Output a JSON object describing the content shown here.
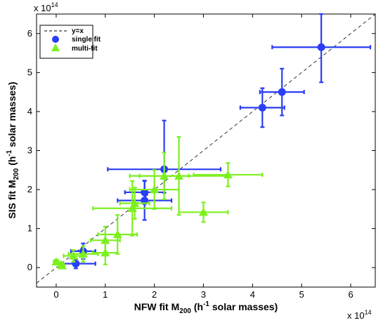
{
  "chart_data": {
    "type": "scatter",
    "xlabel": "NFW fit M",
    "xlabel_sub": "200",
    "xlabel_tail": " (h",
    "xlabel_sup": "-1",
    "xlabel_end": " solar masses)",
    "ylabel": "SIS fit M",
    "ylabel_sub": "200",
    "ylabel_tail": " (h",
    "ylabel_sup": "-1",
    "ylabel_end": " solar masses)",
    "x_multiplier_base": "x 10",
    "x_multiplier_exp": "14",
    "y_multiplier_base": "x 10",
    "y_multiplier_exp": "14",
    "xlim": [
      -0.4,
      6.5
    ],
    "ylim": [
      -0.5,
      6.5
    ],
    "x_ticks": [
      0,
      1,
      2,
      3,
      4,
      5,
      6
    ],
    "y_ticks": [
      0,
      1,
      2,
      3,
      4,
      5,
      6
    ],
    "x_tick_labels": [
      "0",
      "1",
      "2",
      "3",
      "4",
      "5",
      "6"
    ],
    "y_tick_labels": [
      "0",
      "1",
      "2",
      "3",
      "4",
      "5",
      "6"
    ],
    "grid": false,
    "legend_position": "top-left",
    "legend": [
      {
        "label": "y=x",
        "marker": "dashed-line",
        "color": "#000000"
      },
      {
        "label": "single fit",
        "marker": "circle",
        "color": "#2a3ef5"
      },
      {
        "label": "multi-fit",
        "marker": "triangle",
        "color": "#7cf01e"
      }
    ],
    "reference_line": {
      "name": "y=x",
      "x": [
        -0.4,
        6.5
      ],
      "y": [
        -0.4,
        6.5
      ]
    },
    "series": [
      {
        "name": "single fit",
        "marker": "circle",
        "color": "#2a3ef5",
        "points": [
          {
            "x": 5.4,
            "y": 5.65,
            "xerr": [
              1.0,
              1.0
            ],
            "yerr": [
              0.9,
              0.85
            ]
          },
          {
            "x": 4.6,
            "y": 4.5,
            "xerr": [
              0.45,
              0.45
            ],
            "yerr": [
              0.6,
              0.6
            ]
          },
          {
            "x": 4.2,
            "y": 4.1,
            "xerr": [
              0.45,
              0.45
            ],
            "yerr": [
              0.5,
              0.5
            ]
          },
          {
            "x": 2.2,
            "y": 2.52,
            "xerr": [
              1.15,
              1.15
            ],
            "yerr": [
              0.6,
              1.25
            ]
          },
          {
            "x": 1.8,
            "y": 1.93,
            "xerr": [
              0.4,
              0.4
            ],
            "yerr": [
              0.3,
              0.3
            ]
          },
          {
            "x": 1.8,
            "y": 1.72,
            "xerr": [
              0.55,
              0.55
            ],
            "yerr": [
              0.5,
              0.5
            ]
          },
          {
            "x": 0.55,
            "y": 0.42,
            "xerr": [
              0.25,
              0.25
            ],
            "yerr": [
              0.2,
              0.2
            ]
          },
          {
            "x": 0.4,
            "y": 0.1,
            "xerr": [
              0.3,
              0.4
            ],
            "yerr": [
              0.12,
              0.12
            ]
          }
        ]
      },
      {
        "name": "multi-fit",
        "marker": "triangle",
        "color": "#7cf01e",
        "points": [
          {
            "x": 3.5,
            "y": 2.38,
            "xerr": [
              0.7,
              0.7
            ],
            "yerr": [
              0.3,
              0.3
            ]
          },
          {
            "x": 3.0,
            "y": 1.42,
            "xerr": [
              0.5,
              0.5
            ],
            "yerr": [
              0.25,
              0.25
            ]
          },
          {
            "x": 2.5,
            "y": 2.35,
            "xerr": [
              1.0,
              1.0
            ],
            "yerr": [
              1.0,
              1.0
            ]
          },
          {
            "x": 2.2,
            "y": 2.35,
            "xerr": [
              0.5,
              0.5
            ],
            "yerr": [
              0.6,
              0.6
            ]
          },
          {
            "x": 2.0,
            "y": 2.0,
            "xerr": [
              0.5,
              0.5
            ],
            "yerr": [
              0.5,
              0.5
            ]
          },
          {
            "x": 1.55,
            "y": 1.52,
            "xerr": [
              0.8,
              0.8
            ],
            "yerr": [
              0.7,
              0.7
            ]
          },
          {
            "x": 1.6,
            "y": 1.65,
            "xerr": [
              0.3,
              0.3
            ],
            "yerr": [
              0.4,
              0.4
            ]
          },
          {
            "x": 1.25,
            "y": 0.85,
            "xerr": [
              0.4,
              0.4
            ],
            "yerr": [
              0.5,
              0.5
            ]
          },
          {
            "x": 1.0,
            "y": 0.7,
            "xerr": [
              0.3,
              0.3
            ],
            "yerr": [
              0.35,
              0.35
            ]
          },
          {
            "x": 1.0,
            "y": 0.38,
            "xerr": [
              0.25,
              0.25
            ],
            "yerr": [
              0.3,
              0.3
            ]
          },
          {
            "x": 0.55,
            "y": 0.35,
            "xerr": [
              0.3,
              0.3
            ],
            "yerr": [
              0.2,
              0.2
            ]
          },
          {
            "x": 0.35,
            "y": 0.3,
            "xerr": [
              0.2,
              0.2
            ],
            "yerr": [
              0.15,
              0.15
            ]
          },
          {
            "x": 0.0,
            "y": 0.15,
            "xerr": [
              0.05,
              0.05
            ],
            "yerr": [
              0.05,
              0.05
            ]
          },
          {
            "x": 0.1,
            "y": 0.08,
            "xerr": [
              0.05,
              0.05
            ],
            "yerr": [
              0.05,
              0.05
            ]
          },
          {
            "x": 0.12,
            "y": 0.05,
            "xerr": [
              0.05,
              0.05
            ],
            "yerr": [
              0.05,
              0.05
            ]
          }
        ]
      }
    ]
  }
}
